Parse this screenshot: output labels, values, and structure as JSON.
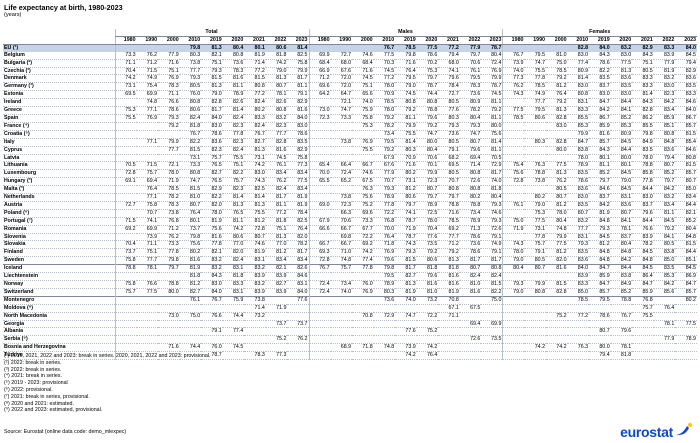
{
  "title": "Life expectancy at birth, 1980-2023",
  "subtitle": "(years)",
  "groups": [
    "Total",
    "Males",
    "Females"
  ],
  "years": [
    "1980",
    "1990",
    "2000",
    "2010",
    "2019",
    "2020",
    "2021",
    "2022",
    "2023"
  ],
  "rows": [
    {
      "c": "EU (¹)",
      "eu": true,
      "v": [
        "",
        "",
        "",
        "79.8",
        "81.3",
        "80.4",
        "80.1",
        "80.6",
        "81.4",
        "",
        "",
        "",
        "76.7",
        "78.5",
        "77.5",
        "77.2",
        "77.9",
        "78.7",
        "",
        "",
        "",
        "82.8",
        "84.0",
        "83.2",
        "82.9",
        "83.3",
        "84.0"
      ]
    },
    {
      "c": "Belgium",
      "v": [
        "73.3",
        "76.2",
        "77.9",
        "80.3",
        "82.1",
        "80.8",
        "81.9",
        "81.8",
        "82.5",
        "69.9",
        "72.7",
        "74.6",
        "77.5",
        "79.8",
        "78.6",
        "79.4",
        "79.7",
        "80.4",
        "76.7",
        "79.5",
        "81.0",
        "83.0",
        "84.3",
        "83.0",
        "84.3",
        "83.9",
        "84.5"
      ]
    },
    {
      "c": "Bulgaria (²)",
      "v": [
        "71.1",
        "71.2",
        "71.6",
        "73.8",
        "75.1",
        "73.6",
        "71.4",
        "74.2",
        "75.8",
        "68.4",
        "68.0",
        "68.4",
        "70.3",
        "71.6",
        "70.2",
        "68.0",
        "70.6",
        "72.4",
        "73.9",
        "74.7",
        "75.0",
        "77.4",
        "78.6",
        "77.5",
        "75.1",
        "77.9",
        "79.4"
      ]
    },
    {
      "c": "Czechia (³)",
      "v": [
        "70.4",
        "71.5",
        "75.1",
        "77.7",
        "79.3",
        "78.3",
        "77.2",
        "79.0",
        "79.9",
        "66.9",
        "67.6",
        "71.6",
        "74.5",
        "76.4",
        "75.3",
        "74.1",
        "76.1",
        "76.9",
        "74.0",
        "75.5",
        "78.5",
        "80.9",
        "82.2",
        "81.3",
        "80.5",
        "81.9",
        "82.9"
      ]
    },
    {
      "c": "Denmark",
      "v": [
        "74.2",
        "74.9",
        "76.9",
        "79.3",
        "81.5",
        "81.6",
        "81.5",
        "81.3",
        "81.7",
        "71.2",
        "72.0",
        "74.5",
        "77.2",
        "79.5",
        "79.7",
        "79.6",
        "79.5",
        "79.9",
        "77.3",
        "77.8",
        "79.2",
        "81.4",
        "83.5",
        "83.6",
        "83.3",
        "83.2",
        "83.6"
      ]
    },
    {
      "c": "Germany (³)",
      "v": [
        "73.1",
        "75.4",
        "78.3",
        "80.5",
        "81.3",
        "81.1",
        "80.8",
        "80.7",
        "81.1",
        "69.6",
        "72.0",
        "75.1",
        "78.0",
        "79.0",
        "78.7",
        "78.4",
        "78.3",
        "78.7",
        "76.2",
        "78.5",
        "81.2",
        "83.0",
        "83.7",
        "83.5",
        "83.3",
        "83.0",
        "83.5"
      ]
    },
    {
      "c": "Estonia",
      "v": [
        "69.5",
        "69.9",
        "71.1",
        "76.0",
        "79.0",
        "78.9",
        "77.2",
        "78.1",
        "79.1",
        "64.2",
        "64.7",
        "65.6",
        "70.9",
        "74.5",
        "74.4",
        "72.7",
        "73.6",
        "74.5",
        "74.3",
        "74.9",
        "76.4",
        "80.8",
        "83.0",
        "83.0",
        "81.4",
        "82.3",
        "83.3"
      ]
    },
    {
      "c": "Ireland",
      "v": [
        "",
        "74.8",
        "76.6",
        "80.8",
        "82.8",
        "82.6",
        "82.4",
        "82.6",
        "82.9",
        "",
        "72.1",
        "74.0",
        "78.5",
        "80.8",
        "80.8",
        "80.5",
        "80.9",
        "81.1",
        "",
        "77.7",
        "79.2",
        "83.1",
        "84.7",
        "84.4",
        "84.3",
        "84.2",
        "84.6"
      ]
    },
    {
      "c": "Greece",
      "v": [
        "75.3",
        "77.1",
        "78.6",
        "80.6",
        "81.7",
        "81.4",
        "80.2",
        "80.8",
        "81.6",
        "73.0",
        "74.7",
        "75.9",
        "78.0",
        "79.2",
        "78.8",
        "77.6",
        "78.2",
        "79.2",
        "77.5",
        "79.5",
        "81.3",
        "83.3",
        "84.2",
        "84.1",
        "82.8",
        "83.4",
        "84.0"
      ]
    },
    {
      "c": "Spain",
      "v": [
        "75.5",
        "76.9",
        "79.3",
        "82.4",
        "84.0",
        "82.4",
        "83.3",
        "83.2",
        "84.0",
        "72.3",
        "73.3",
        "75.8",
        "79.2",
        "81.1",
        "79.6",
        "80.3",
        "80.4",
        "81.1",
        "78.5",
        "80.6",
        "82.8",
        "85.5",
        "86.7",
        "85.2",
        "86.2",
        "85.9",
        "86.7"
      ]
    },
    {
      "c": "France (⁴)",
      "v": [
        "",
        "",
        "79.2",
        "81.8",
        "83.0",
        "82.3",
        "82.4",
        "82.3",
        "83.0",
        "",
        "",
        "75.3",
        "78.2",
        "79.9",
        "79.2",
        "79.3",
        "79.3",
        "80.0",
        "",
        "",
        "83.0",
        "85.3",
        "85.9",
        "85.3",
        "85.5",
        "85.1",
        "85.7"
      ]
    },
    {
      "c": "Croatia (⁵)",
      "v": [
        "",
        "",
        "",
        "76.7",
        "78.6",
        "77.8",
        "76.7",
        "77.7",
        "78.6",
        "",
        "",
        "",
        "73.4",
        "75.5",
        "74.7",
        "73.6",
        "74.7",
        "75.6",
        "",
        "",
        "",
        "79.9",
        "81.6",
        "80.9",
        "79.8",
        "80.8",
        "81.5"
      ]
    },
    {
      "c": "Italy",
      "v": [
        "",
        "77.1",
        "79.9",
        "82.2",
        "83.6",
        "82.3",
        "82.7",
        "82.8",
        "83.5",
        "",
        "73.8",
        "76.9",
        "79.5",
        "81.4",
        "80.0",
        "80.5",
        "80.7",
        "81.4",
        "",
        "80.3",
        "82.8",
        "84.7",
        "85.7",
        "84.5",
        "84.9",
        "84.8",
        "85.4"
      ]
    },
    {
      "c": "Cyprus",
      "v": [
        "",
        "",
        "77.7",
        "81.5",
        "82.3",
        "82.4",
        "81.3",
        "81.6",
        "82.9",
        "",
        "",
        "75.5",
        "79.2",
        "80.3",
        "80.4",
        "79.1",
        "79.6",
        "81.1",
        "",
        "",
        "80.0",
        "83.8",
        "84.3",
        "84.4",
        "83.5",
        "83.6",
        "84.6"
      ]
    },
    {
      "c": "Latvia",
      "v": [
        "",
        "",
        "",
        "73.1",
        "75.7",
        "75.5",
        "73.1",
        "74.5",
        "75.8",
        "",
        "",
        "",
        "67.9",
        "70.9",
        "70.6",
        "68.2",
        "69.4",
        "70.5",
        "",
        "",
        "",
        "78.0",
        "80.1",
        "80.0",
        "78.0",
        "79.4",
        "80.8"
      ]
    },
    {
      "c": "Lithuania",
      "v": [
        "70.5",
        "71.5",
        "72.1",
        "73.3",
        "76.5",
        "75.1",
        "74.2",
        "76.1",
        "77.3",
        "65.4",
        "66.4",
        "66.7",
        "67.6",
        "71.6",
        "70.1",
        "69.5",
        "71.4",
        "72.9",
        "75.4",
        "76.3",
        "77.5",
        "78.9",
        "81.1",
        "80.1",
        "78.8",
        "80.7",
        "81.5"
      ]
    },
    {
      "c": "Luxembourg",
      "v": [
        "72.8",
        "75.7",
        "78.0",
        "80.8",
        "82.7",
        "82.2",
        "83.0",
        "83.4",
        "83.4",
        "70.0",
        "72.4",
        "74.6",
        "77.9",
        "80.2",
        "79.9",
        "80.5",
        "80.8",
        "81.7",
        "75.6",
        "78.8",
        "81.3",
        "83.5",
        "85.2",
        "84.5",
        "85.8",
        "85.2",
        "85.7"
      ]
    },
    {
      "c": "Hungary (³)",
      "v": [
        "69.1",
        "69.4",
        "71.9",
        "74.7",
        "76.5",
        "75.7",
        "74.3",
        "76.2",
        "77.5",
        "65.5",
        "65.2",
        "67.5",
        "70.7",
        "73.1",
        "72.3",
        "70.7",
        "72.6",
        "74.0",
        "72.8",
        "73.8",
        "76.2",
        "78.6",
        "79.7",
        "79.0",
        "77.8",
        "79.7",
        "80.7"
      ]
    },
    {
      "c": "Malta (³)",
      "v": [
        "",
        "76.4",
        "78.5",
        "81.5",
        "82.9",
        "82.3",
        "82.5",
        "82.4",
        "83.4",
        "",
        "",
        "76.3",
        "79.3",
        "81.2",
        "80.7",
        "80.8",
        "80.8",
        "81.8",
        "",
        "",
        "80.5",
        "83.6",
        "84.6",
        "84.5",
        "84.4",
        "84.2",
        "85.0"
      ]
    },
    {
      "c": "Netherlands",
      "v": [
        "",
        "77.1",
        "78.2",
        "81.0",
        "82.2",
        "81.4",
        "81.4",
        "81.7",
        "81.9",
        "",
        "73.8",
        "75.6",
        "78.9",
        "80.6",
        "79.7",
        "79.7",
        "80.2",
        "80.4",
        "",
        "80.2",
        "80.7",
        "83.0",
        "83.7",
        "83.1",
        "83.0",
        "83.2",
        "83.4"
      ]
    },
    {
      "c": "Austria",
      "v": [
        "72.7",
        "75.8",
        "78.3",
        "80.7",
        "82.0",
        "81.3",
        "81.3",
        "81.1",
        "81.9",
        "69.0",
        "72.3",
        "75.2",
        "77.8",
        "79.7",
        "78.9",
        "78.8",
        "78.8",
        "79.3",
        "76.1",
        "79.0",
        "81.2",
        "83.5",
        "84.2",
        "83.6",
        "83.7",
        "83.4",
        "84.4"
      ]
    },
    {
      "c": "Poland (⁶)",
      "v": [
        "",
        "70.7",
        "73.8",
        "76.4",
        "78.0",
        "76.5",
        "75.5",
        "77.2",
        "78.4",
        "",
        "66.3",
        "69.6",
        "72.2",
        "74.1",
        "72.5",
        "71.6",
        "73.4",
        "74.6",
        "",
        "75.3",
        "78.0",
        "80.7",
        "81.9",
        "80.7",
        "79.6",
        "81.1",
        "82.1"
      ]
    },
    {
      "c": "Portugal (⁷)",
      "v": [
        "71.5",
        "74.1",
        "76.8",
        "80.1",
        "81.9",
        "81.1",
        "81.2",
        "81.8",
        "82.5",
        "67.9",
        "70.6",
        "73.3",
        "76.8",
        "78.7",
        "78.0",
        "78.5",
        "78.9",
        "79.3",
        "75.0",
        "77.5",
        "80.4",
        "83.2",
        "84.8",
        "84.1",
        "84.4",
        "84.5",
        "85.2"
      ]
    },
    {
      "c": "Romania",
      "v": [
        "69.2",
        "69.9",
        "71.2",
        "73.7",
        "75.6",
        "74.2",
        "72.8",
        "75.1",
        "76.4",
        "66.6",
        "66.7",
        "67.7",
        "70.0",
        "71.9",
        "70.4",
        "69.2",
        "71.3",
        "72.6",
        "71.9",
        "73.1",
        "74.8",
        "77.7",
        "79.3",
        "78.1",
        "76.6",
        "79.2",
        "80.4"
      ]
    },
    {
      "c": "Slovenia",
      "v": [
        "",
        "73.9",
        "76.2",
        "79.8",
        "81.6",
        "80.6",
        "80.7",
        "81.3",
        "82.0",
        "",
        "69.8",
        "72.2",
        "76.4",
        "78.7",
        "77.6",
        "77.7",
        "78.6",
        "79.1",
        "",
        "77.8",
        "79.9",
        "83.1",
        "84.5",
        "83.7",
        "83.9",
        "84.1",
        "84.8"
      ]
    },
    {
      "c": "Slovakia",
      "v": [
        "70.4",
        "71.1",
        "73.3",
        "75.6",
        "77.8",
        "77.0",
        "74.6",
        "77.0",
        "78.2",
        "66.7",
        "66.7",
        "69.2",
        "71.8",
        "74.3",
        "73.5",
        "71.2",
        "73.6",
        "74.9",
        "74.3",
        "75.7",
        "77.5",
        "79.3",
        "81.2",
        "80.4",
        "78.2",
        "80.5",
        "81.5"
      ]
    },
    {
      "c": "Finland",
      "v": [
        "73.7",
        "75.1",
        "77.8",
        "80.2",
        "82.1",
        "82.0",
        "81.9",
        "81.2",
        "81.7",
        "69.3",
        "71.0",
        "74.2",
        "76.9",
        "79.3",
        "79.2",
        "79.2",
        "78.6",
        "79.1",
        "78.0",
        "79.1",
        "81.2",
        "83.5",
        "84.8",
        "84.8",
        "84.5",
        "83.8",
        "84.4"
      ]
    },
    {
      "c": "Sweden",
      "v": [
        "75.8",
        "77.7",
        "79.8",
        "81.6",
        "83.2",
        "82.4",
        "83.1",
        "83.4",
        "83.4",
        "72.8",
        "74.8",
        "77.4",
        "79.6",
        "81.5",
        "80.6",
        "81.3",
        "81.7",
        "81.7",
        "79.0",
        "80.5",
        "82.0",
        "83.6",
        "84.8",
        "84.2",
        "84.8",
        "85.0",
        "85.1"
      ]
    },
    {
      "c": "Iceland",
      "v": [
        "78.8",
        "78.1",
        "79.7",
        "81.9",
        "83.2",
        "83.1",
        "83.2",
        "82.1",
        "82.6",
        "76.7",
        "75.7",
        "77.8",
        "79.8",
        "81.7",
        "81.8",
        "81.8",
        "80.7",
        "80.8",
        "80.4",
        "80.7",
        "81.6",
        "84.0",
        "84.7",
        "84.4",
        "84.5",
        "83.5",
        "84.5"
      ],
      "sep": true
    },
    {
      "c": "Liechtenstein",
      "v": [
        "",
        "",
        "",
        "81.8",
        "84.3",
        "81.8",
        "83.9",
        "83.9",
        "84.6",
        "",
        "",
        "",
        "79.5",
        "82.7",
        "79.6",
        "81.6",
        "82.4",
        "82.4",
        "",
        "",
        "",
        "83.9",
        "85.9",
        "83.8",
        "86.4",
        "85.3",
        "86.9"
      ]
    },
    {
      "c": "Norway",
      "v": [
        "75.8",
        "76.6",
        "78.8",
        "81.2",
        "83.0",
        "83.3",
        "83.2",
        "82.7",
        "83.1",
        "72.4",
        "73.4",
        "76.0",
        "78.9",
        "81.3",
        "81.6",
        "81.6",
        "81.0",
        "81.5",
        "79.3",
        "79.9",
        "81.5",
        "83.3",
        "84.7",
        "84.9",
        "84.7",
        "84.2",
        "84.7"
      ]
    },
    {
      "c": "Switzerland",
      "v": [
        "75.7",
        "77.5",
        "80.0",
        "82.7",
        "84.0",
        "83.1",
        "83.9",
        "83.9",
        "84.0",
        "72.4",
        "74.0",
        "76.9",
        "80.3",
        "81.9",
        "81.0",
        "81.9",
        "81.6",
        "82.2",
        "79.0",
        "80.8",
        "82.8",
        "85.0",
        "85.7",
        "85.2",
        "85.9",
        "85.6",
        "85.7"
      ]
    },
    {
      "c": "Montenegro",
      "v": [
        "",
        "",
        "",
        "76.1",
        "76.7",
        "75.9",
        "73.8",
        "",
        "77.6",
        "",
        "",
        "",
        "73.6",
        "74.0",
        "73.2",
        "70.8",
        "",
        "75.0",
        "",
        "",
        "",
        "78.5",
        "79.5",
        "78.8",
        "76.8",
        "",
        "80.2"
      ],
      "sep": true
    },
    {
      "c": "Moldova (⁸)",
      "v": [
        "",
        "",
        "",
        "",
        "",
        "",
        "71.4",
        "71.9",
        "",
        "",
        "",
        "",
        "",
        "",
        "",
        "67.1",
        "67.5",
        "",
        "",
        "",
        "",
        "",
        "",
        "",
        "75.7",
        "76.4",
        ""
      ]
    },
    {
      "c": "North Macedonia",
      "v": [
        "",
        "",
        "73.0",
        "75.0",
        "76.6",
        "74.4",
        "73.2",
        "",
        "",
        "",
        "",
        "70.8",
        "72.9",
        "74.7",
        "72.2",
        "71.1",
        "",
        "",
        "",
        "",
        "75.2",
        "77.2",
        "78.6",
        "76.7",
        "75.5",
        "",
        ""
      ]
    },
    {
      "c": "Georgia",
      "v": [
        "",
        "",
        "",
        "",
        "",
        "",
        "",
        "73.7",
        "73.7",
        "",
        "",
        "",
        "",
        "",
        "",
        "",
        "69.4",
        "69.9",
        "",
        "",
        "",
        "",
        "",
        "",
        "",
        "78.1",
        "77.5"
      ]
    },
    {
      "c": "Albania",
      "v": [
        "",
        "",
        "",
        "",
        "79.1",
        "77.4",
        "",
        "",
        "",
        "",
        "",
        "",
        "",
        "77.6",
        "75.2",
        "",
        "",
        "",
        "",
        "",
        "",
        "",
        "80.7",
        "79.6",
        "",
        "",
        ""
      ]
    },
    {
      "c": "Serbia (⁹)",
      "v": [
        "",
        "",
        "",
        "",
        "",
        "",
        "",
        "75.2",
        "76.2",
        "",
        "",
        "",
        "",
        "",
        "",
        "",
        "72.6",
        "73.5",
        "",
        "",
        "",
        "",
        "",
        "",
        "",
        "77.9",
        "78.9"
      ]
    },
    {
      "c": "Bosnia and Herzegovina",
      "v": [
        "",
        "",
        "71.6",
        "74.4",
        "76.0",
        "74.5",
        "",
        "",
        "",
        "",
        "68.9",
        "71.8",
        "74.8",
        "73.9",
        "74.2",
        "",
        "",
        "",
        "",
        "74.2",
        "74.2",
        "76.3",
        "80.0",
        "78.1",
        "",
        "",
        ""
      ]
    },
    {
      "c": "Türkiye",
      "v": [
        "",
        "",
        "",
        "",
        "78.7",
        "",
        "78.3",
        "77.3",
        "",
        "",
        "",
        "",
        "",
        "74.2",
        "76.4",
        "",
        "",
        "",
        "",
        "",
        "",
        "",
        "79.4",
        "81.8",
        "",
        "",
        ""
      ]
    }
  ],
  "notes": [
    "(¹) 2010, 2021, 2022 and 2023: break in series. 2020, 2021, 2022 and 2023: provisional.",
    "(²) 2022: break in series.",
    "(³) 2022: break in series.",
    "(⁴) 2021: break in series.",
    "(⁵) 2019 - 2023: provisional",
    "(⁶) 2022: provisional.",
    "(⁷) 2021: break in series, provisional.",
    "(⁸) 2020 and 2021: estimated.",
    "(⁹) 2022 and 2023: estimated, provisional."
  ],
  "source": "Source: Eurostat (online data code: demo_mlexpec)",
  "logo_text": "eurostat",
  "colors": {
    "eu_row": "#c6d4ea",
    "logo": "#0e47cb",
    "logo_accent": "#ffcc00"
  }
}
